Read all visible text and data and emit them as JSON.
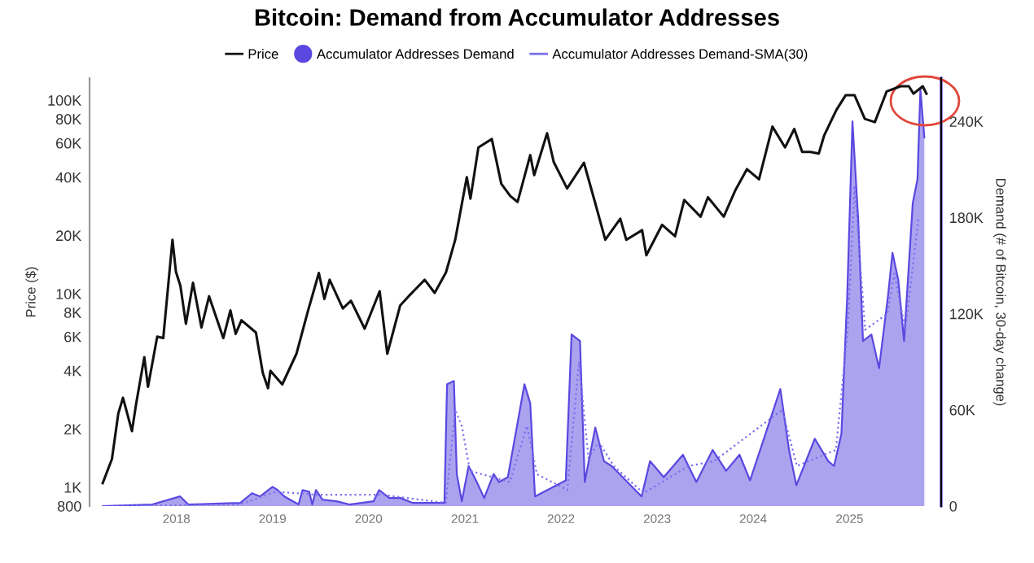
{
  "chart_data": {
    "type": "line",
    "title": "Bitcoin: Demand from Accumulator Addresses",
    "ylabel": "Price ($)",
    "y2label": "Demand (# of Bitcoin, 30-day change)",
    "log": "y",
    "legend": "top",
    "grid": false,
    "xlim": [
      "2017-02-05",
      "2025-12-15"
    ],
    "xticks": [
      {
        "value": "2018-01-01",
        "label": "2018"
      },
      {
        "value": "2019-01-01",
        "label": "2019"
      },
      {
        "value": "2020-01-01",
        "label": "2020"
      },
      {
        "value": "2021-01-01",
        "label": "2021"
      },
      {
        "value": "2022-01-01",
        "label": "2022"
      },
      {
        "value": "2023-01-01",
        "label": "2023"
      },
      {
        "value": "2024-01-01",
        "label": "2024"
      },
      {
        "value": "2025-01-01",
        "label": "2025"
      }
    ],
    "ylim": [
      800,
      130000
    ],
    "yticks": [
      {
        "value": 800,
        "label": "800"
      },
      {
        "value": 1000,
        "label": "1K"
      },
      {
        "value": 2000,
        "label": "2K"
      },
      {
        "value": 4000,
        "label": "4K"
      },
      {
        "value": 6000,
        "label": "6K"
      },
      {
        "value": 8000,
        "label": "8K"
      },
      {
        "value": 10000,
        "label": "10K"
      },
      {
        "value": 20000,
        "label": "20K"
      },
      {
        "value": 40000,
        "label": "40K"
      },
      {
        "value": 60000,
        "label": "60K"
      },
      {
        "value": 80000,
        "label": "80K"
      },
      {
        "value": 100000,
        "label": "100K"
      }
    ],
    "y2lim": [
      0,
      267000
    ],
    "y2ticks": [
      {
        "value": 0,
        "label": "0"
      },
      {
        "value": 60000,
        "label": "60K"
      },
      {
        "value": 120000,
        "label": "120K"
      },
      {
        "value": 180000,
        "label": "180K"
      },
      {
        "value": 240000,
        "label": "240K"
      }
    ],
    "series": [
      {
        "name": "Price",
        "color": "#111111",
        "line_style": "solid",
        "x": [
          "2017-03-27",
          "2017-05-01",
          "2017-05-25",
          "2017-06-12",
          "2017-07-16",
          "2017-08-01",
          "2017-09-01",
          "2017-09-15",
          "2017-10-20",
          "2017-11-12",
          "2017-12-17",
          "2017-12-30",
          "2018-01-16",
          "2018-02-06",
          "2018-03-05",
          "2018-04-06",
          "2018-05-05",
          "2018-06-28",
          "2018-07-25",
          "2018-08-14",
          "2018-09-05",
          "2018-10-30",
          "2018-11-25",
          "2018-12-15",
          "2018-12-24",
          "2019-02-07",
          "2019-04-02",
          "2019-05-14",
          "2019-06-26",
          "2019-07-17",
          "2019-08-06",
          "2019-09-25",
          "2019-10-26",
          "2019-12-17",
          "2020-02-12",
          "2020-03-12",
          "2020-04-30",
          "2020-06-01",
          "2020-08-01",
          "2020-09-08",
          "2020-10-21",
          "2020-11-25",
          "2021-01-08",
          "2021-01-22",
          "2021-02-21",
          "2021-04-13",
          "2021-05-19",
          "2021-06-22",
          "2021-07-20",
          "2021-09-06",
          "2021-09-21",
          "2021-11-09",
          "2021-12-04",
          "2022-01-24",
          "2022-03-29",
          "2022-05-12",
          "2022-06-18",
          "2022-08-14",
          "2022-09-06",
          "2022-11-05",
          "2022-11-21",
          "2023-01-20",
          "2023-03-10",
          "2023-04-14",
          "2023-06-15",
          "2023-07-13",
          "2023-09-11",
          "2023-10-24",
          "2023-12-08",
          "2024-01-23",
          "2024-03-14",
          "2024-05-01",
          "2024-06-05",
          "2024-07-05",
          "2024-08-05",
          "2024-09-06",
          "2024-09-27",
          "2024-11-12",
          "2024-12-17",
          "2025-01-20",
          "2025-02-28",
          "2025-04-07",
          "2025-05-22",
          "2025-07-14",
          "2025-08-14",
          "2025-09-01",
          "2025-10-06",
          "2025-10-20"
        ],
        "values": [
          1050,
          1400,
          2400,
          2900,
          1950,
          2700,
          4700,
          3300,
          6000,
          5900,
          19000,
          13000,
          11000,
          7000,
          11400,
          6700,
          9700,
          5900,
          8200,
          6200,
          7300,
          6300,
          3900,
          3250,
          4000,
          3400,
          4900,
          8000,
          12800,
          9400,
          11800,
          8400,
          9200,
          6600,
          10300,
          4900,
          8700,
          9700,
          11800,
          10100,
          12900,
          19000,
          40000,
          31000,
          57000,
          63000,
          37000,
          32000,
          29800,
          52000,
          41000,
          67500,
          48000,
          35000,
          47500,
          29000,
          19000,
          24400,
          19000,
          21300,
          15800,
          22700,
          19800,
          30500,
          25000,
          31500,
          25000,
          34000,
          44000,
          39000,
          73000,
          57000,
          71000,
          54000,
          54000,
          53000,
          66000,
          89000,
          106000,
          106000,
          80000,
          77000,
          111000,
          118000,
          118000,
          108000,
          118000,
          108000
        ]
      },
      {
        "name": "Accumulator Addresses Demand",
        "type": "area",
        "axis": "y2",
        "color": "#5a48e0",
        "x": [
          "2017-03-27",
          "2017-10-01",
          "2018-01-15",
          "2018-02-15",
          "2018-09-01",
          "2018-10-15",
          "2018-11-15",
          "2019-01-01",
          "2019-01-20",
          "2019-02-15",
          "2019-04-10",
          "2019-04-25",
          "2019-05-20",
          "2019-06-01",
          "2019-06-15",
          "2019-07-10",
          "2019-09-01",
          "2019-10-20",
          "2020-01-20",
          "2020-02-10",
          "2020-03-20",
          "2020-05-01",
          "2020-06-15",
          "2020-10-15",
          "2020-10-25",
          "2020-11-20",
          "2020-12-01",
          "2020-12-20",
          "2021-01-15",
          "2021-02-15",
          "2021-03-15",
          "2021-04-20",
          "2021-05-10",
          "2021-06-13",
          "2021-08-15",
          "2021-09-06",
          "2021-09-24",
          "2022-01-19",
          "2022-02-10",
          "2022-03-14",
          "2022-04-01",
          "2022-05-11",
          "2022-06-13",
          "2022-07-12",
          "2022-11-03",
          "2022-12-05",
          "2023-01-26",
          "2023-04-09",
          "2023-05-30",
          "2023-07-31",
          "2023-09-20",
          "2023-11-10",
          "2023-12-20",
          "2024-04-13",
          "2024-05-16",
          "2024-06-13",
          "2024-08-22",
          "2024-10-12",
          "2024-11-03",
          "2024-12-01",
          "2024-12-23",
          "2025-01-12",
          "2025-02-03",
          "2025-02-21",
          "2025-03-25",
          "2025-04-23",
          "2025-05-27",
          "2025-06-13",
          "2025-07-05",
          "2025-07-27",
          "2025-08-29",
          "2025-09-16",
          "2025-09-27",
          "2025-10-12"
        ],
        "values": [
          0,
          1000,
          6000,
          1000,
          2000,
          8000,
          6000,
          12000,
          10000,
          6000,
          1000,
          10000,
          9000,
          1000,
          10000,
          4000,
          3000,
          1000,
          3000,
          10000,
          5000,
          5000,
          2000,
          2000,
          76000,
          78000,
          20000,
          3000,
          25000,
          15000,
          5000,
          20000,
          15000,
          18000,
          76000,
          64000,
          6000,
          16000,
          107000,
          103000,
          15000,
          49000,
          28000,
          25000,
          6000,
          28000,
          18000,
          32000,
          15000,
          35000,
          22000,
          32000,
          16000,
          73000,
          35000,
          13000,
          42000,
          28000,
          25000,
          45000,
          131000,
          240000,
          178000,
          103000,
          107000,
          86000,
          131000,
          158000,
          141000,
          103000,
          189000,
          204000,
          260000,
          230000
        ]
      },
      {
        "name": "Accumulator Addresses Demand-SMA(30)",
        "type": "line",
        "axis": "y2",
        "color": "#7b70ee",
        "line_style": "dotted",
        "x": [
          "2017-03-27",
          "2018-09-01",
          "2019-01-15",
          "2019-06-20",
          "2020-02-20",
          "2020-10-20",
          "2020-11-25",
          "2020-12-20",
          "2021-01-20",
          "2021-06-20",
          "2021-08-25",
          "2021-10-01",
          "2022-01-25",
          "2022-03-10",
          "2022-04-15",
          "2022-05-25",
          "2022-07-20",
          "2022-11-10",
          "2023-05-01",
          "2023-08-05",
          "2024-04-20",
          "2024-06-15",
          "2024-11-10",
          "2024-12-25",
          "2025-01-20",
          "2025-03-01",
          "2025-05-25",
          "2025-06-20",
          "2025-08-01",
          "2025-09-20"
        ],
        "values": [
          0,
          1000,
          9000,
          7000,
          7000,
          2000,
          60000,
          50000,
          22000,
          15000,
          50000,
          20000,
          10000,
          90000,
          30000,
          40000,
          25000,
          8000,
          25000,
          28000,
          60000,
          25000,
          35000,
          110000,
          200000,
          110000,
          120000,
          145000,
          110000,
          180000
        ]
      }
    ]
  }
}
